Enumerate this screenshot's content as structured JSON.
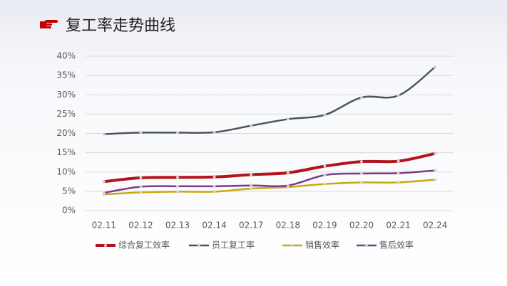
{
  "chart_data": {
    "type": "line",
    "title": "复工率走势曲线",
    "categories": [
      "02.11",
      "02.12",
      "02.13",
      "02.14",
      "02.17",
      "02.18",
      "02.19",
      "02.20",
      "02.21",
      "02.24"
    ],
    "series": [
      {
        "name": "综合复工效率",
        "color": "#b5121b",
        "values": [
          7.5,
          8.5,
          8.6,
          8.7,
          9.3,
          9.8,
          11.5,
          12.7,
          12.8,
          14.8
        ]
      },
      {
        "name": "员工复工率",
        "color": "#4a5560",
        "values": [
          19.8,
          20.2,
          20.2,
          20.3,
          22.0,
          23.7,
          24.8,
          29.3,
          29.8,
          37.2
        ]
      },
      {
        "name": "销售效率",
        "color": "#c9a90a",
        "values": [
          4.2,
          4.7,
          4.9,
          4.9,
          5.7,
          6.1,
          6.9,
          7.3,
          7.3,
          8.0
        ]
      },
      {
        "name": "售后效率",
        "color": "#7a3a8c",
        "values": [
          4.6,
          6.2,
          6.3,
          6.3,
          6.5,
          6.5,
          9.2,
          9.6,
          9.7,
          10.4
        ]
      }
    ],
    "ylim": [
      0,
      40
    ],
    "yticks": [
      {
        "value": 0,
        "label": "0%"
      },
      {
        "value": 5,
        "label": "5%"
      },
      {
        "value": 10,
        "label": "10%"
      },
      {
        "value": 15,
        "label": "15%"
      },
      {
        "value": 20,
        "label": "20%"
      },
      {
        "value": 25,
        "label": "25%"
      },
      {
        "value": 30,
        "label": "30%"
      },
      {
        "value": 35,
        "label": "35%"
      },
      {
        "value": 40,
        "label": "40%"
      }
    ],
    "grid": true
  }
}
